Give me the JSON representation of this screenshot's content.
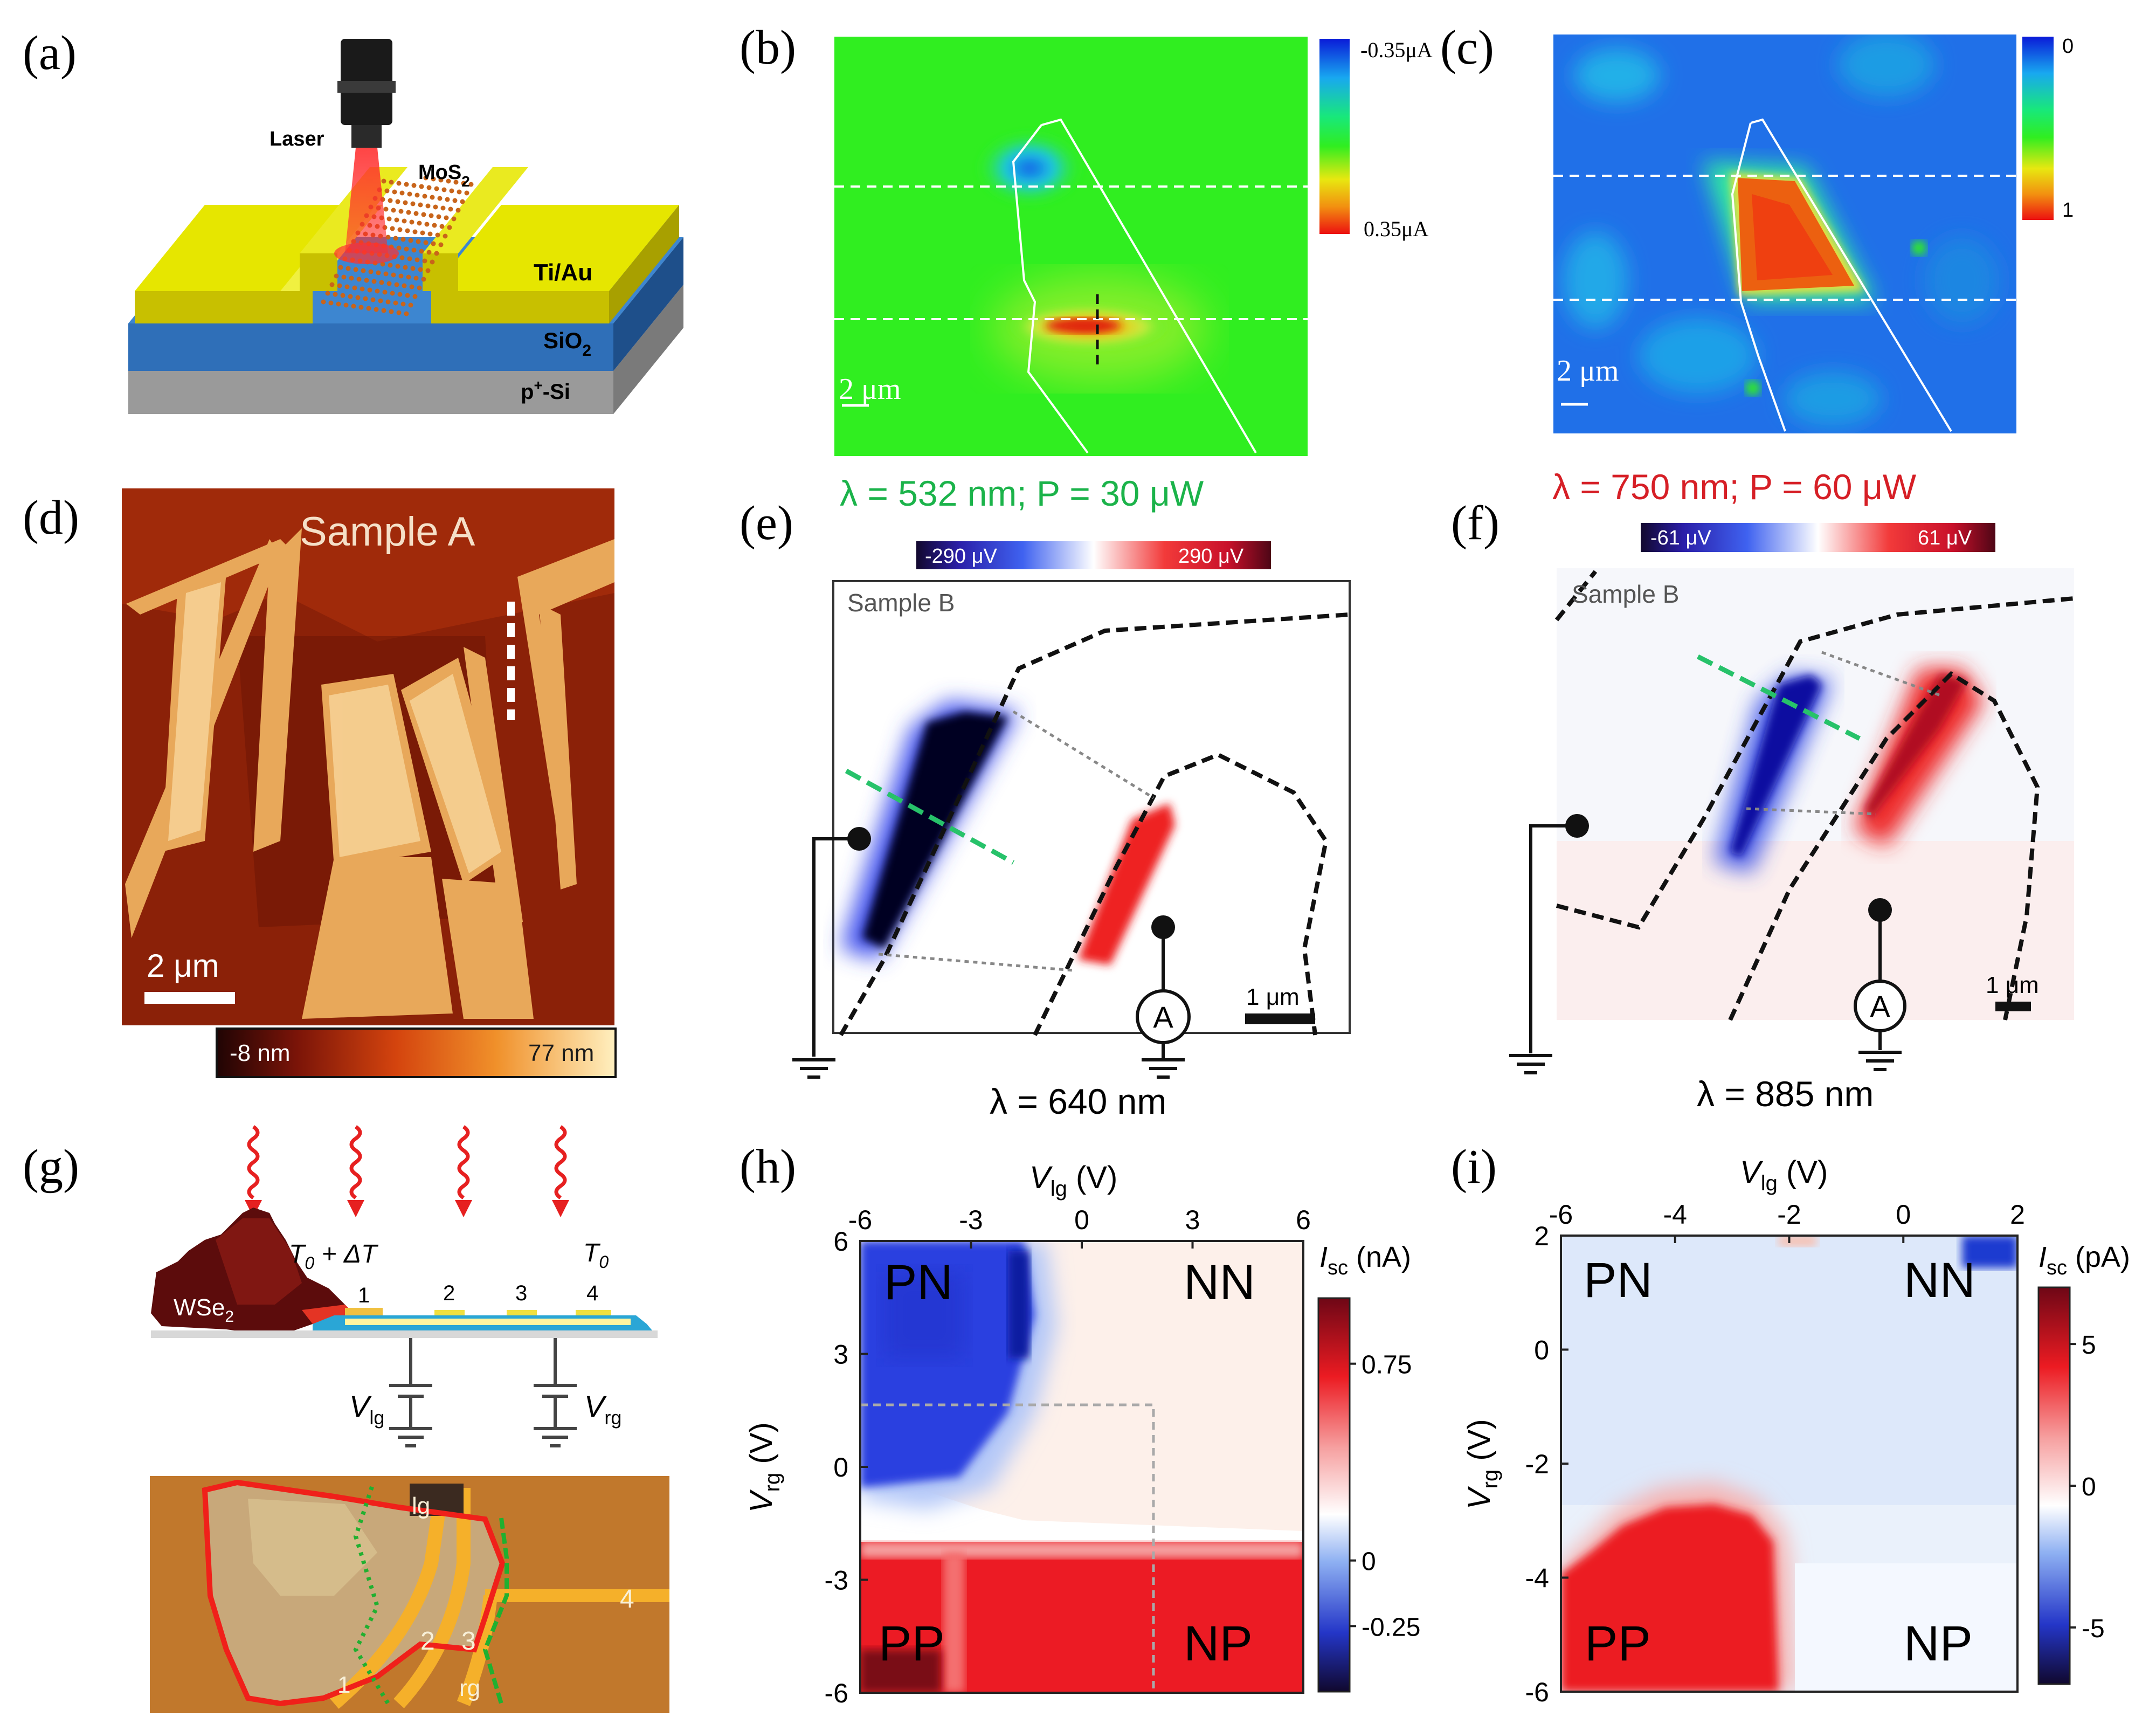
{
  "panel_labels": [
    "(a)",
    "(b)",
    "(c)",
    "(d)",
    "(e)",
    "(f)",
    "(g)",
    "(h)",
    "(i)"
  ],
  "a": {
    "laser": "Laser",
    "mos2": "MoS",
    "mos2_sub": "2",
    "tiau": "Ti/Au",
    "sio2": "SiO",
    "sio2_sub": "2",
    "psi_pre": "p",
    "psi_sup": "+",
    "psi_post": "-Si"
  },
  "b": {
    "cb_top": "-0.35μA",
    "cb_bottom": "0.35μA",
    "scale": "2 μm",
    "caption": "λ = 532 nm; P = 30 μW"
  },
  "c": {
    "cb_top": "0",
    "cb_bottom": "1",
    "scale": "2 μm",
    "caption": "λ = 750 nm; P = 60 μW"
  },
  "d": {
    "sample": "Sample A",
    "scale": "2 μm",
    "cb_min": "-8 nm",
    "cb_max": "77 nm"
  },
  "e": {
    "cb_min": "-290 μV",
    "cb_max": "290 μV",
    "sample": "Sample B",
    "scale": "1 μm",
    "meter": "A",
    "lambda": "λ = 640 nm"
  },
  "f": {
    "cb_min": "-61 μV",
    "cb_max": "61 μV",
    "sample": "Sample B",
    "scale": "1 μm",
    "meter": "A",
    "lambda": "λ = 885 nm"
  },
  "g": {
    "t0dt": "T",
    "t0dt_sub": "0",
    "t0dt_rest": " + ΔT",
    "t0": "T",
    "t0_sub": "0",
    "electrodes": [
      "1",
      "2",
      "3",
      "4"
    ],
    "wse2": "WSe",
    "wse2_sub": "2",
    "vlg": "V",
    "vlg_sub": "lg",
    "vrg": "V",
    "vrg_sub": "rg",
    "photo_labels": [
      "lg",
      "1",
      "2",
      "3",
      "rg",
      "4"
    ]
  },
  "chart_data": [
    {
      "type": "heatmap",
      "panel": "h",
      "xlabel": "V",
      "xlabel_sub": "lg",
      "xlabel_unit": " (V)",
      "ylabel": "V",
      "ylabel_sub": "rg",
      "ylabel_unit": " (V)",
      "xticks": [
        "-6",
        "-3",
        "0",
        "3",
        "6"
      ],
      "yticks": [
        "6",
        "3",
        "0",
        "-3",
        "-6"
      ],
      "xlim": [
        -6,
        6
      ],
      "ylim": [
        -6,
        6
      ],
      "regions": [
        "PN",
        "NN",
        "PP",
        "NP"
      ],
      "colorbar_label": "I",
      "colorbar_sub": "sc",
      "colorbar_unit": " (nA)",
      "colorbar_ticks": [
        "0.75",
        "0",
        "-0.25"
      ],
      "colorbar_range": [
        -0.5,
        1.0
      ]
    },
    {
      "type": "heatmap",
      "panel": "i",
      "xlabel": "V",
      "xlabel_sub": "lg",
      "xlabel_unit": " (V)",
      "ylabel": "V",
      "ylabel_sub": "rg",
      "ylabel_unit": " (V)",
      "xticks": [
        "-6",
        "-4",
        "-2",
        "0",
        "2"
      ],
      "yticks": [
        "2",
        "0",
        "-2",
        "-4",
        "-6"
      ],
      "xlim": [
        -6,
        2
      ],
      "ylim": [
        -6,
        2
      ],
      "regions": [
        "PN",
        "NN",
        "PP",
        "NP"
      ],
      "colorbar_label": "I",
      "colorbar_sub": "sc",
      "colorbar_unit": " (pA)",
      "colorbar_ticks": [
        "5",
        "0",
        "-5"
      ],
      "colorbar_range": [
        -7,
        7
      ]
    }
  ]
}
